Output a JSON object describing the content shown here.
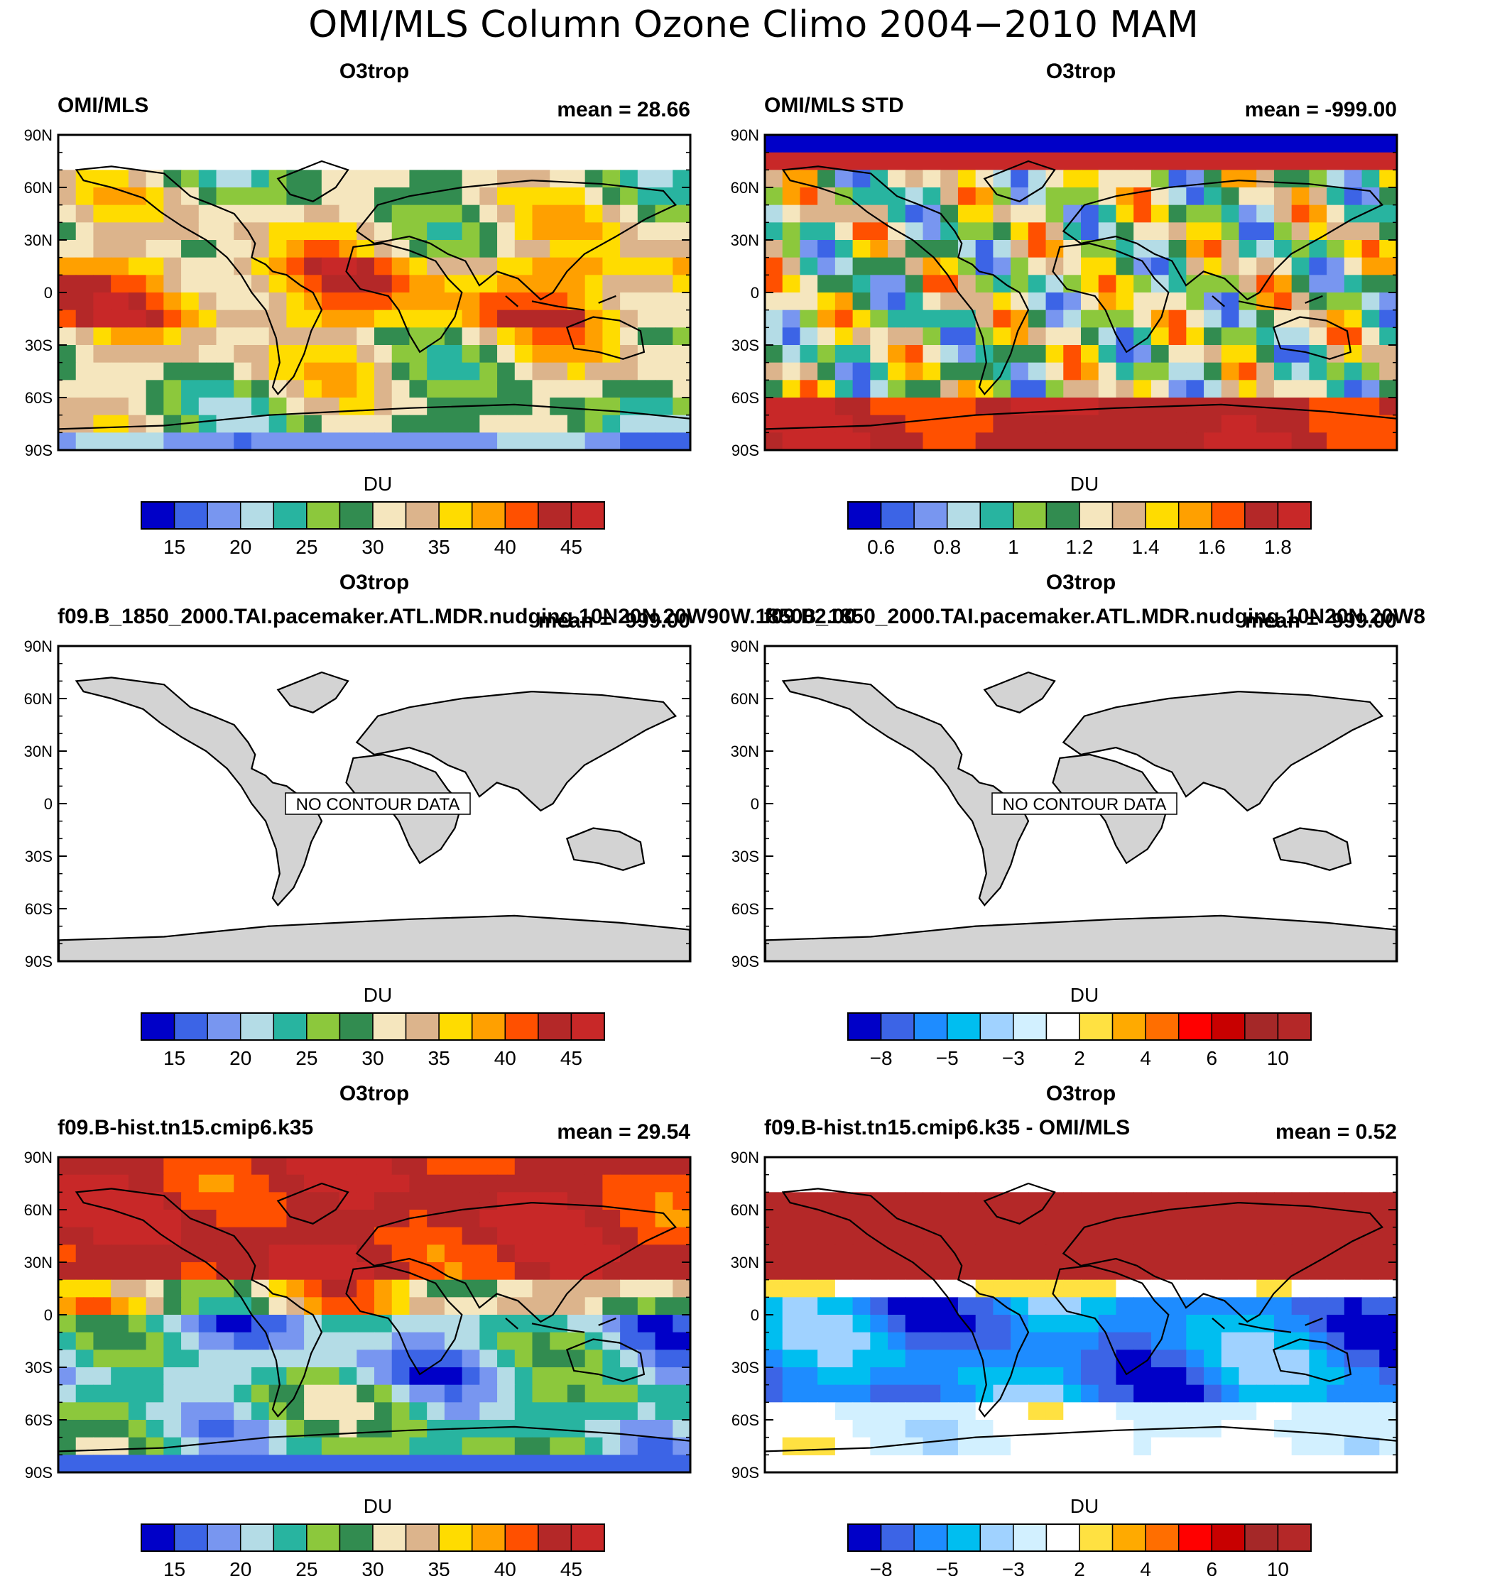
{
  "figure": {
    "title": "OMI/MLS Column Ozone Climo 2004−2010 MAM"
  },
  "chart_data": [
    {
      "type": "heatmap",
      "title": "O3trop",
      "left_label": "OMI/MLS",
      "right_label": "mean =  28.66",
      "units": "DU",
      "y_ticks": [
        "90N",
        "60N",
        "30N",
        "0",
        "30S",
        "60S",
        "90S"
      ],
      "colorbar": {
        "colors": [
          "#0000c8",
          "#3c64e6",
          "#7896f0",
          "#b4dce6",
          "#28b4a0",
          "#8cc83c",
          "#328c50",
          "#f5e6be",
          "#dcb48c",
          "#ffdc00",
          "#ffa000",
          "#ff5000",
          "#b42828",
          "#c82828"
        ],
        "tick_labels": [
          "15",
          "20",
          "25",
          "30",
          "35",
          "40",
          "45"
        ],
        "tick_edges": [
          1,
          3,
          5,
          7,
          9,
          11,
          13
        ]
      },
      "field": "omi"
    },
    {
      "type": "heatmap",
      "title": "O3trop",
      "left_label": "OMI/MLS STD",
      "right_label": "mean = -999.00",
      "units": "DU",
      "y_ticks": [
        "90N",
        "60N",
        "30N",
        "0",
        "30S",
        "60S",
        "90S"
      ],
      "colorbar": {
        "colors": [
          "#0000c8",
          "#3c64e6",
          "#7896f0",
          "#b4dce6",
          "#28b4a0",
          "#8cc83c",
          "#328c50",
          "#f5e6be",
          "#dcb48c",
          "#ffdc00",
          "#ffa000",
          "#ff5000",
          "#b42828",
          "#c82828"
        ],
        "tick_labels": [
          "0.6",
          "0.8",
          "1",
          "1.2",
          "1.4",
          "1.6",
          "1.8"
        ],
        "tick_edges": [
          1,
          3,
          5,
          7,
          9,
          11,
          13
        ]
      },
      "field": "std"
    },
    {
      "type": "heatmap",
      "title": "O3trop",
      "left_label": "f09.B_1850_2000.TAI.pacemaker.ATL.MDR.nudging.10N20N.20W90W.185002.00",
      "right_label": "mean = -999.00",
      "units": "DU",
      "y_ticks": [
        "90N",
        "60N",
        "30N",
        "0",
        "30S",
        "60S",
        "90S"
      ],
      "no_data_text": "NO CONTOUR DATA",
      "colorbar": {
        "colors": [
          "#0000c8",
          "#3c64e6",
          "#7896f0",
          "#b4dce6",
          "#28b4a0",
          "#8cc83c",
          "#328c50",
          "#f5e6be",
          "#dcb48c",
          "#ffdc00",
          "#ffa000",
          "#ff5000",
          "#b42828",
          "#c82828"
        ],
        "tick_labels": [
          "15",
          "20",
          "25",
          "30",
          "35",
          "40",
          "45"
        ],
        "tick_edges": [
          1,
          3,
          5,
          7,
          9,
          11,
          13
        ]
      },
      "field": "none"
    },
    {
      "type": "heatmap",
      "title": "O3trop",
      "left_label": "f09.B_1850_2000.TAI.pacemaker.ATL.MDR.nudging.10N20N.20W8",
      "right_label": "mean = -999.00",
      "units": "DU",
      "y_ticks": [
        "90N",
        "60N",
        "30N",
        "0",
        "30S",
        "60S",
        "90S"
      ],
      "no_data_text": "NO CONTOUR DATA",
      "colorbar": {
        "colors": [
          "#0000c8",
          "#3c64e6",
          "#1e8cff",
          "#00bef0",
          "#a0d2ff",
          "#d2f0ff",
          "#ffffff",
          "#ffe141",
          "#ffaa00",
          "#ff6e00",
          "#ff0000",
          "#c80000",
          "#a52828",
          "#b42828"
        ],
        "tick_labels": [
          "−8",
          "−5",
          "−3",
          "2",
          "4",
          "6",
          "10"
        ],
        "tick_edges": [
          1,
          3,
          5,
          7,
          9,
          11,
          13
        ]
      },
      "field": "none"
    },
    {
      "type": "heatmap",
      "title": "O3trop",
      "left_label": "f09.B-hist.tn15.cmip6.k35",
      "right_label": "mean =  29.54",
      "units": "DU",
      "y_ticks": [
        "90N",
        "60N",
        "30N",
        "0",
        "30S",
        "60S",
        "90S"
      ],
      "colorbar": {
        "colors": [
          "#0000c8",
          "#3c64e6",
          "#7896f0",
          "#b4dce6",
          "#28b4a0",
          "#8cc83c",
          "#328c50",
          "#f5e6be",
          "#dcb48c",
          "#ffdc00",
          "#ffa000",
          "#ff5000",
          "#b42828",
          "#c82828"
        ],
        "tick_labels": [
          "15",
          "20",
          "25",
          "30",
          "35",
          "40",
          "45"
        ],
        "tick_edges": [
          1,
          3,
          5,
          7,
          9,
          11,
          13
        ]
      },
      "field": "model"
    },
    {
      "type": "heatmap",
      "title": "O3trop",
      "left_label": "f09.B-hist.tn15.cmip6.k35 - OMI/MLS",
      "right_label": "mean =   0.52",
      "units": "DU",
      "y_ticks": [
        "90N",
        "60N",
        "30N",
        "0",
        "30S",
        "60S",
        "90S"
      ],
      "colorbar": {
        "colors": [
          "#0000c8",
          "#3c64e6",
          "#1e8cff",
          "#00bef0",
          "#a0d2ff",
          "#d2f0ff",
          "#ffffff",
          "#ffe141",
          "#ffaa00",
          "#ff6e00",
          "#ff0000",
          "#c80000",
          "#a52828",
          "#b42828"
        ],
        "tick_labels": [
          "−8",
          "−5",
          "−3",
          "2",
          "4",
          "6",
          "10"
        ],
        "tick_edges": [
          1,
          3,
          5,
          7,
          9,
          11,
          13
        ]
      },
      "field": "diff"
    }
  ]
}
